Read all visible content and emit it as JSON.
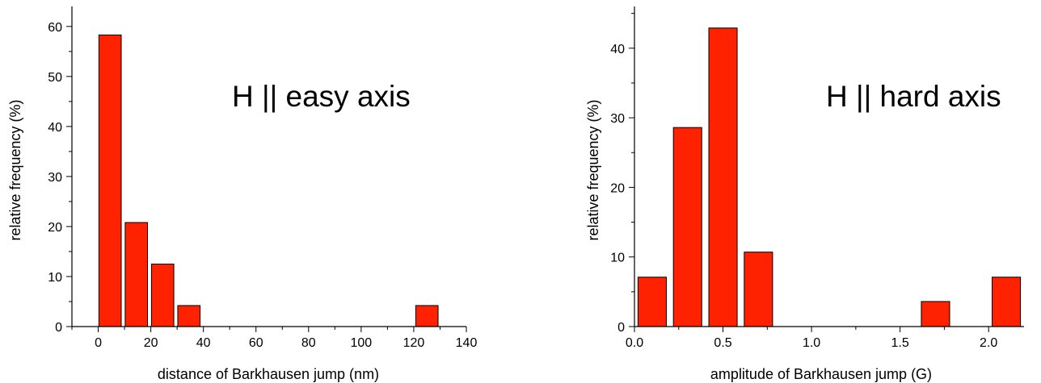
{
  "chart_data": [
    {
      "type": "bar",
      "title": "",
      "annotation": "H || easy axis",
      "xlabel": "distance of Barkhausen jump (nm)",
      "ylabel": "relative frequency (%)",
      "xlim": [
        -10,
        140
      ],
      "ylim": [
        0,
        64
      ],
      "bar_width": 8.5,
      "x": [
        4.5,
        14.5,
        24.5,
        34.5,
        125
      ],
      "values": [
        58.3,
        20.8,
        12.5,
        4.2,
        4.2
      ],
      "xticks": [
        0,
        20,
        40,
        60,
        80,
        100,
        120,
        140
      ],
      "xtick_labels": [
        "0",
        "20",
        "40",
        "60",
        "80",
        "100",
        "120",
        "140"
      ],
      "yticks": [
        0,
        10,
        20,
        30,
        40,
        50,
        60
      ],
      "ytick_labels": [
        "0",
        "10",
        "20",
        "30",
        "40",
        "50",
        "60"
      ],
      "x_minor": 10,
      "y_minor": 5,
      "bar_color": "#ff2200",
      "grid": false,
      "legend": "none"
    },
    {
      "type": "bar",
      "title": "",
      "annotation": "H || hard axis",
      "xlabel": "amplitude of Barkhausen jump (G)",
      "ylabel": "relative frequency (%)",
      "xlim": [
        0,
        2.2
      ],
      "ylim": [
        0,
        46
      ],
      "bar_width": 0.16,
      "x": [
        0.1,
        0.3,
        0.5,
        0.7,
        1.7,
        2.1
      ],
      "values": [
        7.1,
        28.6,
        42.9,
        10.7,
        3.6,
        7.1
      ],
      "xticks": [
        0.0,
        0.5,
        1.0,
        1.5,
        2.0
      ],
      "xtick_labels": [
        "0.0",
        "0.5",
        "1.0",
        "1.5",
        "2.0"
      ],
      "yticks": [
        0,
        10,
        20,
        30,
        40
      ],
      "ytick_labels": [
        "0",
        "10",
        "20",
        "30",
        "40"
      ],
      "x_minor": 0.25,
      "y_minor": 5,
      "bar_color": "#ff2200",
      "grid": false,
      "legend": "none"
    }
  ]
}
